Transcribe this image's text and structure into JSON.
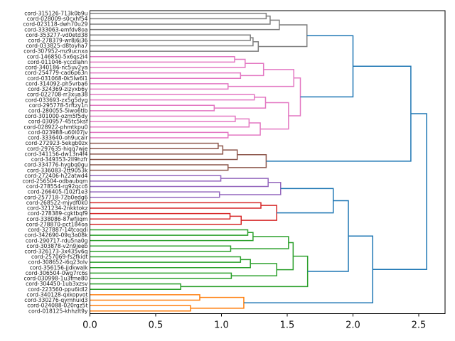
{
  "chart_data": {
    "type": "dendrogram",
    "orientation": "left",
    "title": "",
    "xlabel": "",
    "ylabel": "",
    "xlim": [
      0,
      2.7
    ],
    "xticks": [
      "0.0",
      "0.5",
      "1.0",
      "1.5",
      "2.0",
      "2.5"
    ],
    "xtick_values": [
      0,
      0.5,
      1.0,
      1.5,
      2.0,
      2.5
    ],
    "colors": {
      "gray": "#7f7f7f",
      "pink": "#e377c2",
      "brown": "#8c564b",
      "purple": "#9467bd",
      "red": "#d62728",
      "green": "#2ca02c",
      "orange": "#ff7f0e",
      "blue": "#1f77b4"
    },
    "leaves": [
      "cord-315126-713k0b9u",
      "cord-028009-s0cxhf54",
      "cord-023118-dwh70u29",
      "cord-333063-emfdv8oa",
      "cord-353277-vd0etd38",
      "cord-278379-wr8j6j36",
      "cord-033825-d8toyha7",
      "cord-307952-mz9ucnxa",
      "cord-146850-5x6qs2i4",
      "cord-011046-yccdlahn",
      "cord-340186-nc5uv2ya",
      "cord-254779-cad6p63n",
      "cord-031068-0k5lw6i1",
      "cord-314092-ph5vrba6",
      "cord-324369-zizyxb6y",
      "cord-022708-rr3xua38",
      "cord-033693-zx5g5dyg",
      "cord-295778-5rftzy1n",
      "cord-280055-5iwo6tlb",
      "cord-301000-ozm5f5dy",
      "cord-030957-45tc5ksf",
      "cord-028922-phmtkpu0",
      "cord-023988-u60l07jv",
      "cord-333640-oh9ucair",
      "cord-272923-5ekgb0zx",
      "cord-297635-hiqq7wje",
      "cord-341156-dw13n4f4",
      "cord-349353-2ll9hzfr",
      "cord-334776-hygbq0gu",
      "cord-336083-2tt9053k",
      "cord-272406-h22atwd4",
      "cord-256504-odbaubqm",
      "cord-278554-rg92qcc6",
      "cord-266405-l102f1e3",
      "cord-257718-72b0edg6",
      "cord-268522-mjydf0k0",
      "cord-321234-2nkktokz",
      "cord-278389-cgktbqf9",
      "cord-338086-87wfjiqm",
      "cord-278870-pct184oa",
      "cord-327887-14tcoqdi",
      "cord-342690-09q3a08k",
      "cord-290717-rdu5na0g",
      "cord-303878-v2n9jeeb",
      "cord-326173-3x435v6q",
      "cord-257069-fs2fkidt",
      "cord-308652-i6q23olv",
      "cord-356156-jjdkwalk",
      "cord-306504-0wg7rc6s",
      "cord-030998-1u3fme80",
      "cord-304450-1ub3xzsv",
      "cord-223560-ppu6idl2",
      "cord-340128-qxkopvot",
      "cord-330276-qymhuid3",
      "cord-024088-020rgz5t",
      "cord-018125-khhzlt9y"
    ],
    "tree": {
      "h": 2.56,
      "color": "blue",
      "c": [
        {
          "h": 2.44,
          "c": [
            {
              "h": 2.0,
              "c": [
                {
                  "h": 1.65,
                  "color": "gray",
                  "c": [
                    {
                      "h": 1.44,
                      "c": [
                        {
                          "h": 1.37,
                          "c": [
                            {
                              "h": 1.34,
                              "c": [
                                0,
                                1
                              ]
                            },
                            2
                          ]
                        },
                        3
                      ]
                    },
                    {
                      "h": 1.28,
                      "c": [
                        {
                          "h": 1.24,
                          "c": [
                            {
                              "h": 1.22,
                              "c": [
                                4,
                                5
                              ]
                            },
                            6
                          ]
                        },
                        7
                      ]
                    }
                  ]
                },
                {
                  "h": 1.6,
                  "color": "pink",
                  "c": [
                    {
                      "h": 1.55,
                      "c": [
                        {
                          "h": 1.32,
                          "c": [
                            {
                              "h": 1.18,
                              "c": [
                                {
                                  "h": 1.1,
                                  "c": [
                                    8,
                                    9
                                  ]
                                },
                                10
                              ]
                            },
                            {
                              "h": 1.145,
                              "c": [
                                11,
                                12
                              ]
                            }
                          ]
                        },
                        {
                          "h": 1.05,
                          "c": [
                            13,
                            14
                          ]
                        }
                      ]
                    },
                    {
                      "h": 1.51,
                      "c": [
                        {
                          "h": 1.335,
                          "c": [
                            {
                              "h": 1.25,
                              "c": [
                                15,
                                16
                              ]
                            },
                            {
                              "h": 0.945,
                              "c": [
                                17,
                                18
                              ]
                            }
                          ]
                        },
                        {
                          "h": 1.295,
                          "c": [
                            {
                              "h": 1.21,
                              "c": [
                                {
                                  "h": 1.105,
                                  "c": [
                                    19,
                                    20
                                  ]
                                },
                                21
                              ]
                            },
                            {
                              "h": 1.05,
                              "c": [
                                22,
                                23
                              ]
                            }
                          ]
                        }
                      ]
                    }
                  ]
                }
              ]
            },
            {
              "h": 1.34,
              "color": "brown",
              "c": [
                {
                  "h": 1.12,
                  "c": [
                    {
                      "h": 1.01,
                      "c": [
                        {
                          "h": 0.975,
                          "c": [
                            24,
                            25
                          ]
                        },
                        26
                      ]
                    },
                    27
                  ]
                },
                {
                  "h": 1.05,
                  "c": [
                    28,
                    29
                  ]
                }
              ]
            }
          ]
        },
        {
          "h": 2.15,
          "c": [
            {
              "h": 1.965,
              "c": [
                {
                  "h": 1.85,
                  "c": [
                    {
                      "h": 1.45,
                      "color": "purple",
                      "c": [
                        {
                          "h": 1.355,
                          "c": [
                            {
                              "h": 0.995,
                              "c": [
                                30,
                                31
                              ]
                            },
                            32
                          ]
                        },
                        {
                          "h": 0.985,
                          "c": [
                            33,
                            34
                          ]
                        }
                      ]
                    },
                    {
                      "h": 1.42,
                      "color": "red",
                      "c": [
                        {
                          "h": 1.3,
                          "c": [
                            35,
                            36
                          ]
                        },
                        {
                          "h": 1.15,
                          "c": [
                            {
                              "h": 1.065,
                              "c": [
                                37,
                                38
                              ]
                            },
                            39
                          ]
                        }
                      ]
                    }
                  ]
                },
                {
                  "h": 1.655,
                  "color": "green",
                  "c": [
                    {
                      "h": 1.545,
                      "c": [
                        {
                          "h": 1.51,
                          "c": [
                            {
                              "h": 1.24,
                              "c": [
                                {
                                  "h": 1.2,
                                  "c": [
                                    40,
                                    41
                                  ]
                                },
                                42
                              ]
                            },
                            {
                              "h": 1.07,
                              "c": [
                                43,
                                44
                              ]
                            }
                          ]
                        },
                        {
                          "h": 1.42,
                          "c": [
                            {
                              "h": 1.22,
                              "c": [
                                {
                                  "h": 1.145,
                                  "c": [
                                    45,
                                    46
                                  ]
                                },
                                47
                              ]
                            },
                            {
                              "h": 1.075,
                              "c": [
                                48,
                                49
                              ]
                            }
                          ]
                        }
                      ]
                    },
                    {
                      "h": 0.69,
                      "c": [
                        50,
                        51
                      ]
                    }
                  ]
                }
              ]
            },
            {
              "h": 1.17,
              "color": "orange",
              "c": [
                {
                  "h": 0.835,
                  "c": [
                    52,
                    53
                  ]
                },
                {
                  "h": 0.765,
                  "c": [
                    54,
                    55
                  ]
                }
              ]
            }
          ]
        }
      ]
    }
  }
}
